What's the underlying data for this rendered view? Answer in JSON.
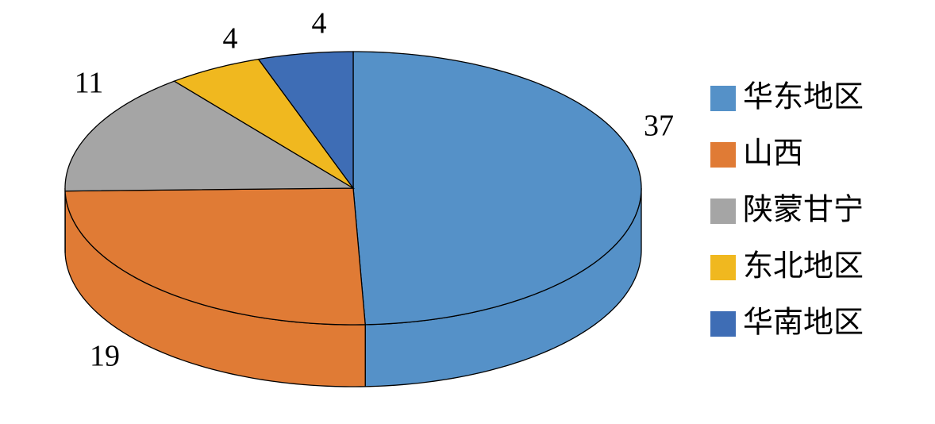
{
  "chart_data": {
    "type": "pie",
    "categories": [
      "华东地区",
      "山西",
      "陕蒙甘宁",
      "东北地区",
      "华南地区"
    ],
    "values": [
      37,
      19,
      11,
      4,
      4
    ],
    "colors": [
      "#5591c8",
      "#e07b35",
      "#a5a5a5",
      "#f0b81f",
      "#3e6db5"
    ],
    "legend": "right"
  }
}
